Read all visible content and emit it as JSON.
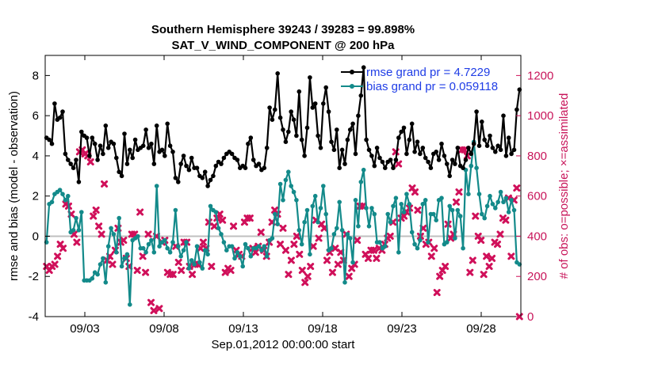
{
  "chart_data": {
    "type": "line",
    "title_line1": "Southern Hemisphere 39243 / 39283 = 99.898%",
    "title_line2": "SAT_V_WIND_COMPONENT @ 200 hPa",
    "xlabel": "Sep.01,2012 00:00:00 start",
    "ylabel_left": "rmse and bias (model - observation)",
    "ylabel_right": "# of obs: o=possible; ×=assimilated",
    "xlim": [
      0.5,
      30.5
    ],
    "ylim_left": [
      -4,
      9
    ],
    "ylim_right": [
      0,
      1300
    ],
    "x_ticks": [
      {
        "value": 3,
        "label": "09/03"
      },
      {
        "value": 8,
        "label": "09/08"
      },
      {
        "value": 13,
        "label": "09/13"
      },
      {
        "value": 18,
        "label": "09/18"
      },
      {
        "value": 23,
        "label": "09/23"
      },
      {
        "value": 28,
        "label": "09/28"
      }
    ],
    "y_ticks_left": [
      "-4",
      "-2",
      "0",
      "2",
      "4",
      "6",
      "8"
    ],
    "y_ticks_right": [
      "0",
      "200",
      "400",
      "600",
      "800",
      "1000",
      "1200"
    ],
    "legend": [
      "rmse grand pr = 4.7229",
      "bias grand pr = 0.059118"
    ],
    "colors": {
      "rmse": "#000000",
      "bias": "#138a8a",
      "obs": "#d0105a",
      "zero": "#bfbfbf"
    },
    "series": [
      {
        "name": "rmse",
        "axis": "left",
        "values": [
          4.9,
          4.8,
          4.6,
          6.6,
          5.8,
          5.9,
          6.2,
          4.1,
          3.8,
          3.6,
          3.4,
          3.8,
          2.7,
          5.2,
          5.0,
          4.9,
          4.0,
          4.9,
          4.6,
          3.8,
          4.5,
          4.1,
          5.5,
          4.4,
          4.7,
          4.6,
          3.9,
          3.2,
          3.0,
          5.1,
          3.6,
          4.3,
          3.9,
          4.8,
          4.3,
          4.4,
          4.5,
          5.3,
          4.4,
          4.6,
          3.6,
          5.5,
          4.2,
          4.3,
          4.0,
          5.6,
          4.5,
          4.2,
          2.9,
          2.7,
          3.6,
          4.0,
          3.5,
          3.3,
          3.9,
          3.4,
          3.4,
          3.0,
          2.9,
          3.2,
          2.5,
          2.8,
          3.0,
          3.5,
          3.7,
          3.6,
          3.9,
          4.1,
          4.2,
          4.1,
          3.9,
          3.8,
          3.4,
          3.5,
          3.4,
          4.6,
          4.9,
          3.8,
          3.5,
          3.6,
          3.3,
          3.4,
          4.4,
          6.4,
          5.8,
          6.3,
          8.1,
          5.9,
          5.3,
          4.7,
          5.2,
          6.2,
          5.8,
          5.0,
          7.2,
          4.8,
          4.0,
          5.4,
          7.9,
          6.4,
          6.6,
          5.0,
          4.4,
          6.6,
          7.4,
          6.2,
          4.7,
          4.3,
          5.3,
          3.4,
          4.3,
          3.6,
          4.8,
          5.3,
          5.6,
          4.1,
          6.0,
          7.0,
          8.4,
          4.8,
          4.3,
          4.0,
          3.5,
          4.4,
          3.9,
          3.7,
          3.4,
          3.7,
          3.8,
          3.4,
          3.8,
          4.9,
          5.2,
          5.4,
          4.1,
          4.8,
          5.6,
          4.2,
          4.7,
          4.1,
          4.4,
          3.9,
          3.7,
          3.4,
          4.1,
          4.2,
          3.8,
          4.6,
          4.0,
          3.6,
          3.0,
          3.8,
          3.6,
          4.4,
          3.5,
          3.4,
          3.8,
          4.4,
          4.1,
          4.6,
          6.2,
          4.5,
          5.7,
          4.8,
          4.5,
          5.0,
          4.4,
          4.2,
          4.5,
          4.3,
          6.0,
          4.0,
          4.9,
          4.1,
          4.3,
          6.3,
          7.3
        ]
      },
      {
        "name": "bias",
        "axis": "left",
        "values": [
          -0.3,
          1.6,
          1.7,
          2.1,
          2.2,
          2.3,
          2.1,
          1.8,
          2.0,
          0.2,
          0.3,
          0.9,
          0.3,
          1.2,
          -2.2,
          -2.2,
          -2.2,
          -2.1,
          -1.8,
          -1.9,
          -1.4,
          -1.1,
          -2.3,
          -0.5,
          0.4,
          0.1,
          -0.8,
          0.9,
          -1.5,
          -1.1,
          -0.9,
          -3.4,
          -0.2,
          -0.1,
          0.0,
          -0.6,
          -0.6,
          -0.8,
          -0.4,
          -0.2,
          -0.8,
          2.5,
          -0.5,
          -0.3,
          -0.2,
          -0.6,
          -0.8,
          -0.3,
          1.3,
          -0.5,
          -1.0,
          -0.7,
          -0.3,
          -1.6,
          -1.2,
          -1.4,
          -0.5,
          -1.3,
          -1.6,
          -0.7,
          -0.9,
          1.5,
          1.3,
          1.2,
          0.4,
          0.1,
          -0.3,
          -0.7,
          -0.5,
          -0.5,
          -1.1,
          -0.8,
          -1.0,
          -1.5,
          -0.4,
          -0.6,
          -1.0,
          -0.6,
          -0.6,
          -0.5,
          -0.7,
          -0.5,
          -1.0,
          -0.2,
          -0.1,
          1.1,
          0.6,
          2.6,
          1.8,
          2.8,
          3.2,
          2.5,
          2.2,
          1.8,
          0.3,
          -0.4,
          0.7,
          1.3,
          -0.9,
          1.5,
          2.0,
          0.7,
          1.4,
          2.5,
          1.1,
          -0.7,
          -0.6,
          0.1,
          0.4,
          1.7,
          0.3,
          -2.3,
          0.1,
          -0.1,
          -1.3,
          1.8,
          0.5,
          2.7,
          3.3,
          1.4,
          0.5,
          1.4,
          1.1,
          -0.3,
          -0.3,
          -0.6,
          -0.5,
          1.1,
          0.7,
          1.5,
          1.9,
          -0.8,
          1.6,
          1.2,
          2.1,
          1.6,
          0.2,
          -0.4,
          -0.6,
          -0.2,
          1.6,
          1.8,
          -0.3,
          1.1,
          1.1,
          0.8,
          1.8,
          1.9,
          -0.4,
          -0.3,
          1.5,
          1.3,
          -0.1,
          1.3,
          1.0,
          -0.6,
          3.3,
          2.1,
          3.5,
          4.7,
          3.4,
          2.1,
          1.1,
          0.9,
          1.5,
          2.0,
          1.6,
          1.4,
          1.7,
          2.2,
          1.7,
          1.9,
          1.2,
          1.8,
          1.3,
          -1.3,
          -1.4
        ]
      },
      {
        "name": "obs_assimilated",
        "axis": "right",
        "type": "scatter",
        "values": [
          250,
          230,
          250,
          260,
          300,
          360,
          340,
          560,
          550,
          510,
          410,
          370,
          820,
          830,
          810,
          800,
          770,
          500,
          530,
          450,
          410,
          660,
          280,
          300,
          260,
          330,
          440,
          370,
          380,
          290,
          250,
          410,
          410,
          230,
          520,
          300,
          220,
          410,
          70,
          30,
          400,
          40,
          370,
          380,
          220,
          210,
          210,
          350,
          270,
          230,
          370,
          370,
          250,
          210,
          260,
          260,
          340,
          370,
          340,
          470,
          250,
          450,
          490,
          510,
          480,
          220,
          240,
          230,
          450,
          330,
          310,
          300,
          470,
          490,
          490,
          340,
          320,
          350,
          420,
          330,
          300,
          370,
          470,
          530,
          510,
          360,
          440,
          330,
          210,
          280,
          360,
          400,
          310,
          230,
          170,
          200,
          250,
          350,
          480,
          390,
          460,
          440,
          280,
          320,
          220,
          340,
          260,
          320,
          280,
          410,
          200,
          240,
          260,
          380,
          550,
          550,
          310,
          290,
          330,
          330,
          290,
          340,
          330,
          360,
          390,
          400,
          470,
          820,
          760,
          490,
          500,
          520,
          540,
          640,
          620,
          530,
          400,
          440,
          360,
          370,
          300,
          340,
          120,
          200,
          230,
          250,
          460,
          390,
          410,
          570,
          620,
          830,
          830,
          800,
          220,
          280,
          500,
          400,
          380,
          210,
          300,
          250,
          290,
          370,
          360,
          410,
          490,
          480,
          590,
          300,
          580,
          640,
          0
        ]
      }
    ]
  }
}
